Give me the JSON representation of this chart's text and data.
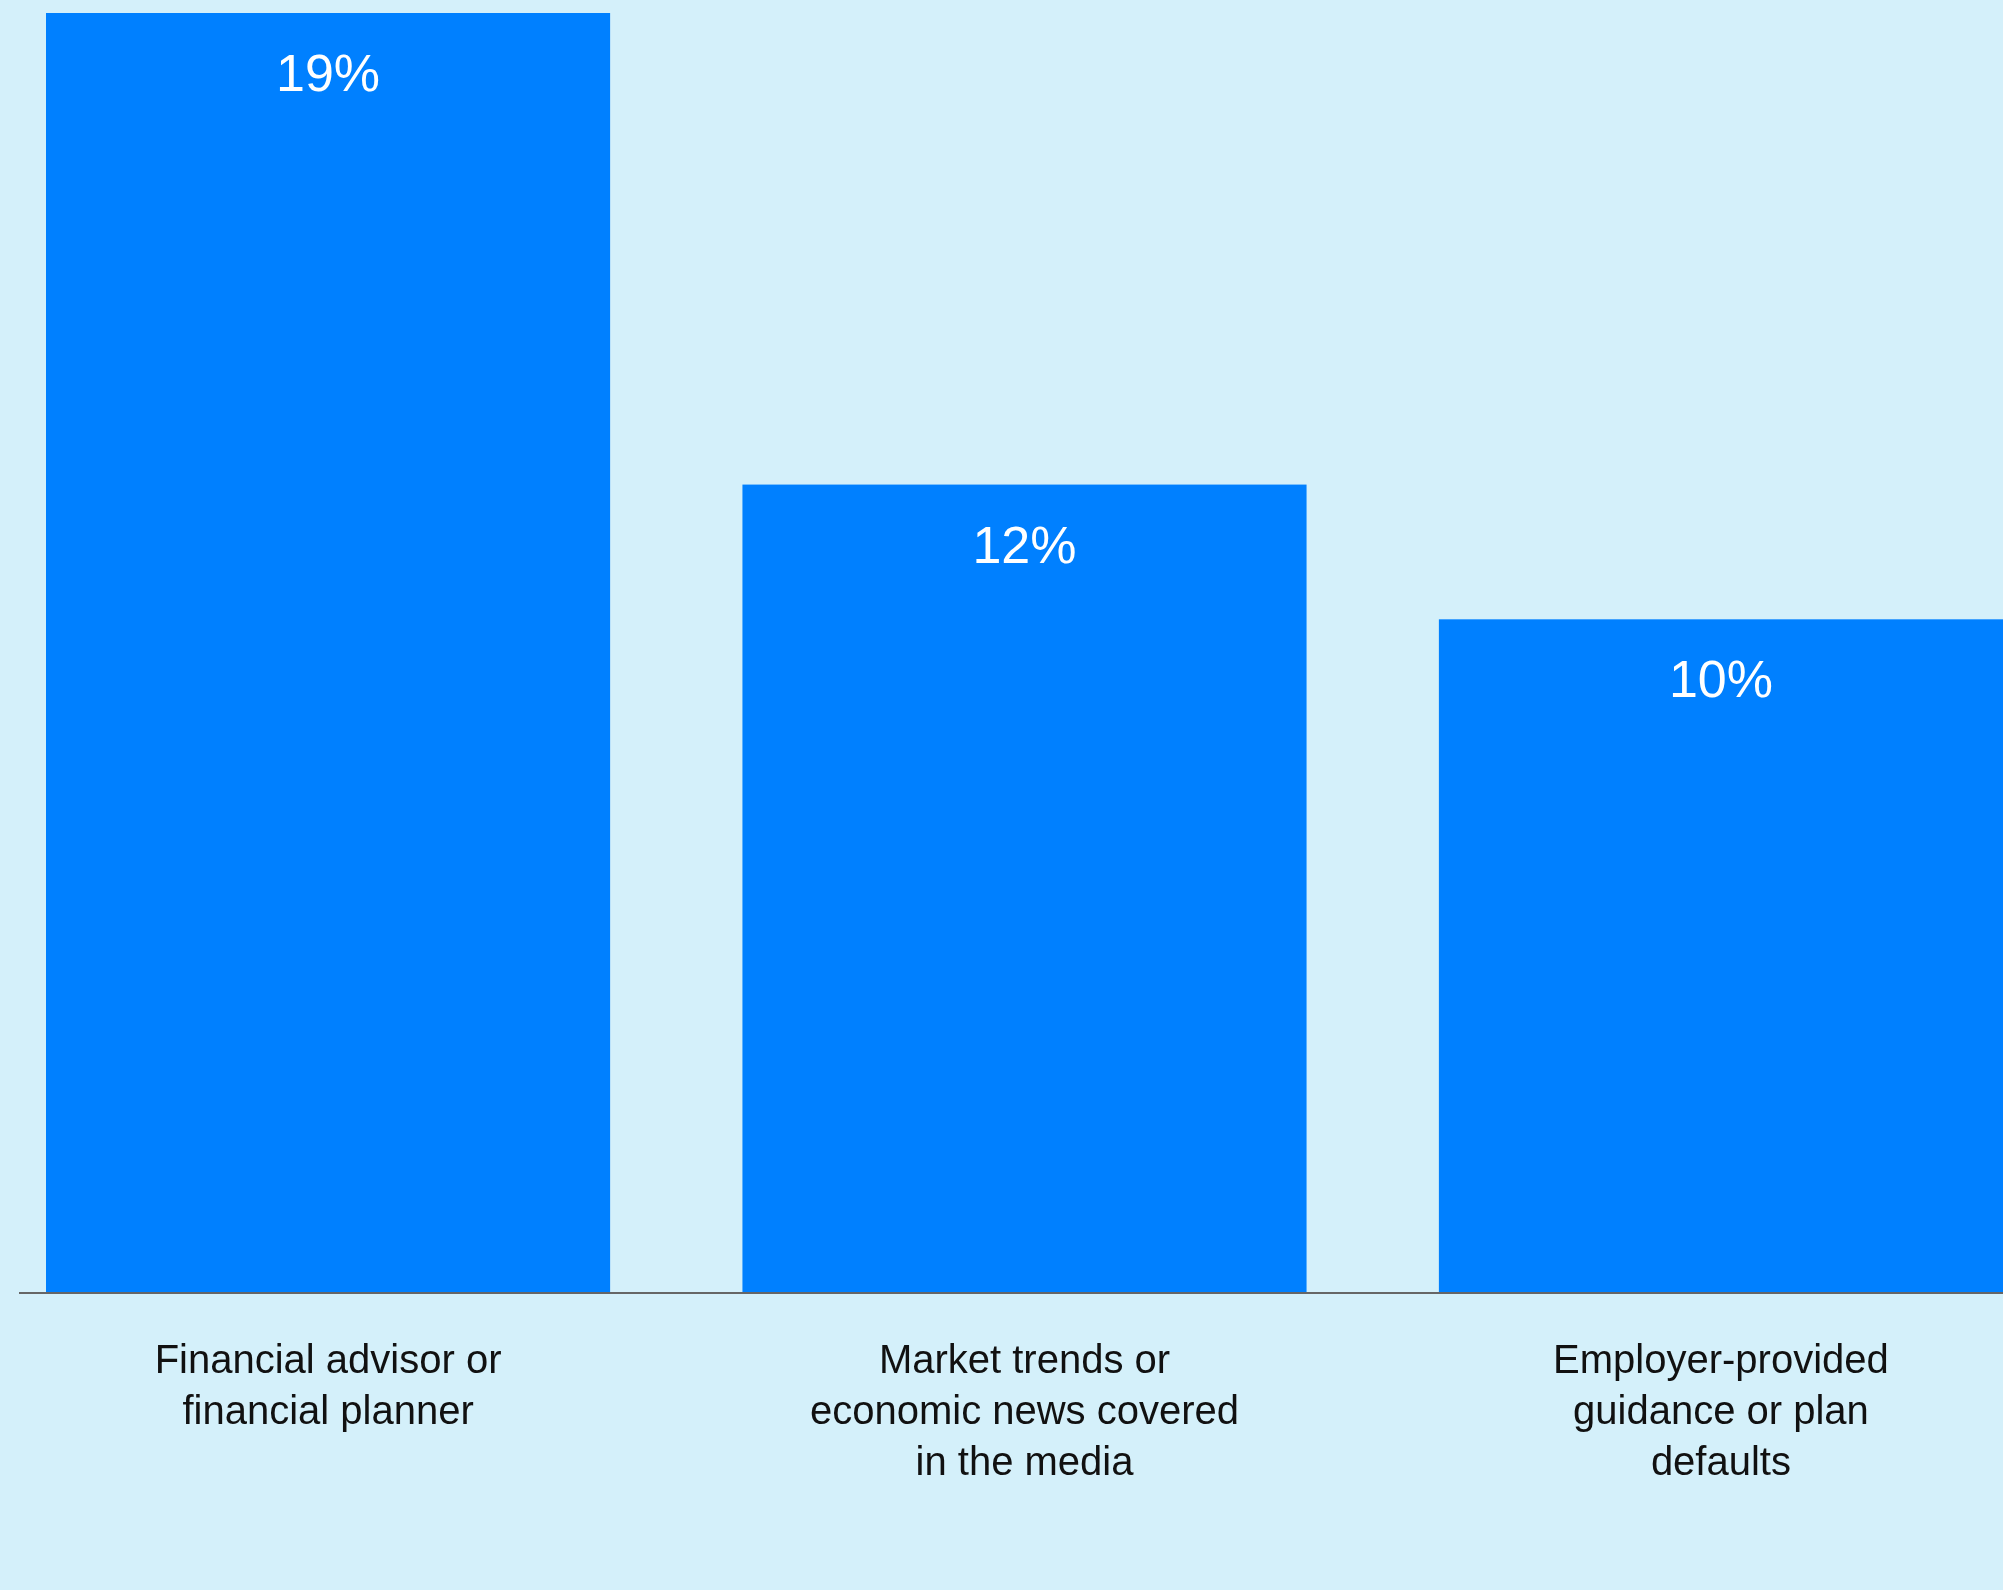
{
  "chart_data": {
    "type": "bar",
    "categories": [
      "Financial advisor or financial planner",
      "Market trends or economic news covered in the media",
      "Employer-provided guidance or plan defaults"
    ],
    "values": [
      19,
      12,
      10
    ],
    "value_labels": [
      "19%",
      "12%",
      "10%"
    ],
    "color": "#0080ff"
  }
}
